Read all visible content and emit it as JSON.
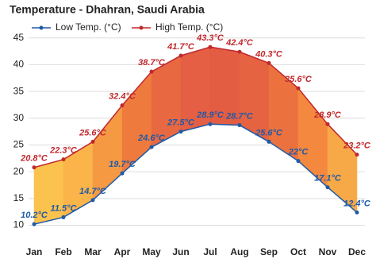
{
  "chart_data": {
    "type": "line",
    "title": "Temperature - Dhahran, Saudi Arabia",
    "categories": [
      "Jan",
      "Feb",
      "Mar",
      "Apr",
      "May",
      "Jun",
      "Jul",
      "Aug",
      "Sep",
      "Oct",
      "Nov",
      "Dec"
    ],
    "series": [
      {
        "name": "Low Temp. (°C)",
        "color": "#1f5aa6",
        "values": [
          10.2,
          11.5,
          14.7,
          19.7,
          24.6,
          27.5,
          28.9,
          28.7,
          25.6,
          22,
          17.1,
          12.4
        ],
        "value_labels": [
          "10.2°C",
          "11.5°C",
          "14.7°C",
          "19.7°C",
          "24.6°C",
          "27.5°C",
          "28.9°C",
          "28.7°C",
          "25.6°C",
          "22°C",
          "17.1°C",
          "12.4°C"
        ]
      },
      {
        "name": "High Temp. (°C)",
        "color": "#c0282d",
        "values": [
          20.8,
          22.3,
          25.6,
          32.4,
          38.7,
          41.7,
          43.3,
          42.4,
          40.3,
          35.6,
          28.9,
          23.2
        ],
        "value_labels": [
          "20.8°C",
          "22.3°C",
          "25.6°C",
          "32.4°C",
          "38.7°C",
          "41.7°C",
          "43.3°C",
          "42.4°C",
          "40.3°C",
          "35.6°C",
          "28.9°C",
          "23.2°C"
        ]
      }
    ],
    "ylim": [
      8,
      46
    ],
    "yticks": [
      10,
      15,
      20,
      25,
      30,
      35,
      40,
      45
    ],
    "grid": true,
    "legend": "top"
  }
}
